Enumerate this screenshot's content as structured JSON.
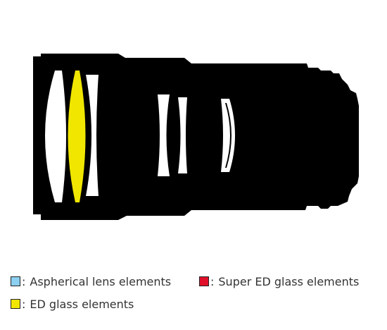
{
  "colors": {
    "background": "#ffffff",
    "barrel": "#000000",
    "lens_element": "#ffffff",
    "ed_element": "#f0e600",
    "aspherical": "#8ccff0",
    "super_ed": "#e0102a"
  },
  "legend": {
    "separator": ":",
    "items": [
      {
        "id": "aspherical",
        "label": "Aspherical lens elements",
        "color": "#8ccff0"
      },
      {
        "id": "super_ed",
        "label": "Super ED glass elements",
        "color": "#e0102a"
      },
      {
        "id": "ed",
        "label": "ED glass elements",
        "color": "#f0e600"
      }
    ]
  }
}
